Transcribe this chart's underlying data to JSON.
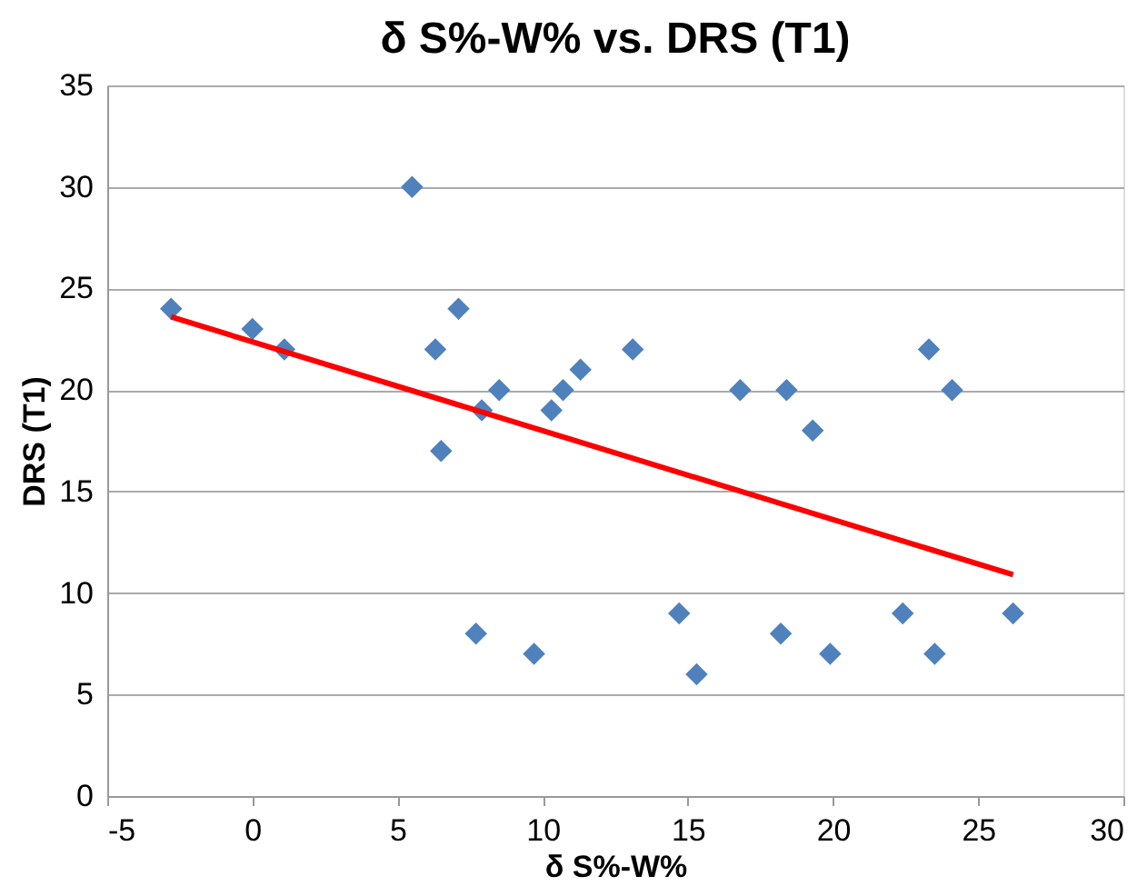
{
  "chart_data": {
    "type": "scatter",
    "title": "δ S%-W% vs. DRS (T1)",
    "xlabel": "δ S%-W%",
    "ylabel": "DRS (T1)",
    "xlim": [
      -5,
      30
    ],
    "xticks": [
      -5,
      0,
      5,
      10,
      15,
      20,
      25,
      30
    ],
    "ylim": [
      0,
      35
    ],
    "yticks": [
      0,
      5,
      10,
      15,
      20,
      25,
      30,
      35
    ],
    "grid": "y",
    "marker": "diamond",
    "series": [
      {
        "color": "#4f81bd",
        "x": [
          -2.8,
          0,
          1.1,
          5.5,
          7.1,
          6.3,
          7.9,
          8.5,
          6.5,
          7.7,
          9.7,
          10.3,
          10.7,
          11.3,
          13.1,
          16.8,
          18.4,
          19.3,
          23.3,
          24.1,
          14.7,
          15.3,
          18.2,
          19.9,
          22.4,
          23.5,
          26.2
        ],
        "values": [
          24,
          23,
          22,
          30,
          24,
          22,
          19,
          20,
          17,
          8,
          7,
          19,
          20,
          21,
          22,
          20,
          20,
          18,
          22,
          20,
          9,
          6,
          8,
          7,
          9,
          7,
          9
        ]
      },
      {
        "type": "line",
        "marker": "none",
        "line_style": "solid",
        "color": "#ff0000",
        "x": [
          -2.8,
          26.2
        ],
        "values": [
          23.6,
          10.9
        ]
      }
    ]
  }
}
